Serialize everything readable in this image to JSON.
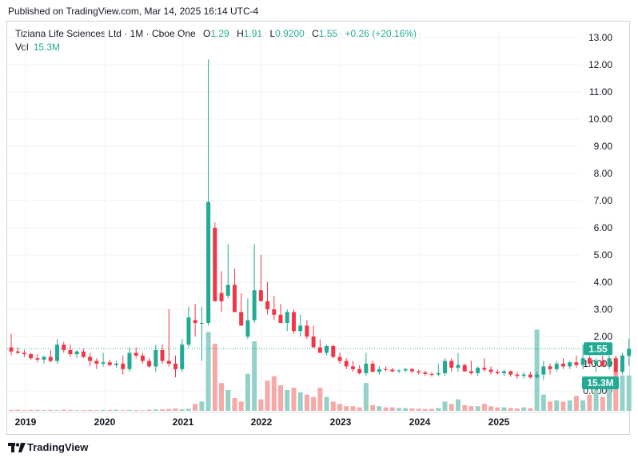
{
  "header": {
    "published": "Published on TradingView.com, Mar 14, 2025 16:14 UTC-4"
  },
  "legend": {
    "symbol": "Tiziana Life Sciences Ltd · 1M · Cboe One",
    "open_label": "O",
    "open": "1.29",
    "high_label": "H",
    "high": "1.91",
    "low_label": "L",
    "low": "0.9200",
    "close_label": "C",
    "close": "1.55",
    "change": "+0.26 (+20.16%)",
    "vol_label": "Vol",
    "vol": "15.3M"
  },
  "footer": {
    "brand": "TradingView",
    "logo_icon": "tradingview-logo-icon"
  },
  "colors": {
    "up": "#22ab94",
    "down": "#f23645",
    "up_vol": "#94d1c8",
    "down_vol": "#f7a9a7",
    "grid": "#f0f3fa",
    "price_line": "#22ab94"
  },
  "chart_data": {
    "type": "candlestick",
    "symbol": "Tiziana Life Sciences Ltd",
    "interval": "1M",
    "ylim": [
      0,
      13.0
    ],
    "y_ticks": [
      "13.00",
      "12.00",
      "11.00",
      "10.00",
      "9.00",
      "8.00",
      "7.00",
      "6.00",
      "5.00",
      "4.00",
      "3.00",
      "2.00",
      "1.0000",
      "0.0000"
    ],
    "x_ticks": [
      "2019",
      "2020",
      "2021",
      "2022",
      "2023",
      "2024",
      "2025"
    ],
    "last_price_label": "1.55",
    "last_volume_label": "15.3M",
    "ohlc": [
      [
        1.6,
        2.1,
        1.3,
        1.45
      ],
      [
        1.45,
        1.6,
        1.35,
        1.4
      ],
      [
        1.4,
        1.5,
        1.25,
        1.35
      ],
      [
        1.35,
        1.4,
        1.15,
        1.2
      ],
      [
        1.2,
        1.35,
        1.05,
        1.15
      ],
      [
        1.15,
        1.3,
        1.0,
        1.25
      ],
      [
        1.25,
        1.5,
        1.05,
        1.1
      ],
      [
        1.1,
        1.9,
        1.0,
        1.7
      ],
      [
        1.7,
        1.8,
        1.4,
        1.5
      ],
      [
        1.5,
        1.7,
        1.25,
        1.35
      ],
      [
        1.35,
        1.5,
        1.2,
        1.45
      ],
      [
        1.45,
        1.55,
        1.2,
        1.25
      ],
      [
        1.25,
        1.4,
        0.9,
        1.1
      ],
      [
        1.1,
        1.2,
        0.8,
        1.0
      ],
      [
        1.0,
        1.4,
        0.9,
        1.05
      ],
      [
        1.05,
        1.15,
        0.9,
        0.95
      ],
      [
        0.95,
        1.1,
        0.85,
        1.0
      ],
      [
        1.0,
        1.3,
        0.6,
        0.8
      ],
      [
        0.8,
        1.6,
        0.7,
        1.4
      ],
      [
        1.4,
        1.6,
        1.2,
        1.3
      ],
      [
        1.3,
        1.4,
        1.0,
        1.1
      ],
      [
        1.1,
        1.2,
        0.85,
        0.9
      ],
      [
        0.9,
        1.7,
        0.7,
        1.5
      ],
      [
        1.5,
        1.7,
        1.0,
        1.1
      ],
      [
        1.1,
        3.0,
        0.9,
        1.0
      ],
      [
        1.0,
        1.3,
        0.5,
        0.8
      ],
      [
        0.8,
        1.9,
        0.7,
        1.7
      ],
      [
        1.7,
        3.1,
        1.6,
        2.7
      ],
      [
        2.6,
        3.2,
        2.0,
        2.5
      ],
      [
        2.5,
        3.1,
        1.1,
        2.5
      ],
      [
        2.5,
        12.2,
        2.4,
        6.95
      ],
      [
        6.0,
        6.2,
        3.3,
        3.3
      ],
      [
        3.6,
        4.4,
        2.9,
        3.3
      ],
      [
        3.5,
        5.4,
        3.4,
        3.9
      ],
      [
        3.9,
        4.5,
        3.0,
        2.9
      ],
      [
        2.9,
        3.6,
        2.4,
        2.4
      ],
      [
        2.0,
        3.4,
        1.9,
        2.6
      ],
      [
        2.6,
        5.4,
        2.5,
        3.7
      ],
      [
        3.7,
        5.0,
        3.3,
        3.3
      ],
      [
        3.3,
        4.0,
        2.8,
        3.0
      ],
      [
        3.0,
        3.5,
        2.6,
        2.8
      ],
      [
        2.8,
        3.2,
        2.5,
        2.5
      ],
      [
        2.5,
        3.0,
        2.2,
        2.9
      ],
      [
        2.9,
        3.0,
        2.1,
        2.2
      ],
      [
        2.2,
        2.8,
        2.0,
        2.4
      ],
      [
        2.4,
        2.6,
        1.9,
        2.0
      ],
      [
        2.0,
        2.4,
        1.6,
        1.6
      ],
      [
        1.6,
        1.9,
        1.4,
        1.4
      ],
      [
        1.4,
        1.7,
        1.3,
        1.65
      ],
      [
        1.65,
        1.7,
        1.2,
        1.25
      ],
      [
        1.25,
        1.4,
        1.0,
        1.1
      ],
      [
        1.1,
        1.2,
        0.8,
        0.9
      ],
      [
        0.9,
        1.1,
        0.7,
        0.8
      ],
      [
        0.8,
        0.95,
        0.6,
        0.65
      ],
      [
        0.65,
        1.4,
        0.55,
        1.0
      ],
      [
        1.0,
        1.1,
        0.7,
        0.7
      ],
      [
        0.7,
        0.9,
        0.6,
        0.8
      ],
      [
        0.8,
        0.9,
        0.7,
        0.78
      ],
      [
        0.78,
        0.85,
        0.68,
        0.72
      ],
      [
        0.72,
        0.8,
        0.65,
        0.75
      ],
      [
        0.75,
        0.85,
        0.68,
        0.8
      ],
      [
        0.8,
        0.85,
        0.65,
        0.72
      ],
      [
        0.72,
        0.78,
        0.6,
        0.68
      ],
      [
        0.68,
        0.75,
        0.55,
        0.62
      ],
      [
        0.62,
        0.7,
        0.52,
        0.6
      ],
      [
        0.6,
        1.0,
        0.55,
        0.65
      ],
      [
        0.65,
        1.2,
        0.55,
        1.1
      ],
      [
        1.1,
        1.2,
        0.7,
        0.85
      ],
      [
        0.85,
        1.4,
        0.7,
        0.95
      ],
      [
        0.95,
        1.0,
        0.7,
        0.72
      ],
      [
        0.72,
        1.1,
        0.6,
        0.65
      ],
      [
        0.65,
        0.9,
        0.55,
        0.85
      ],
      [
        0.85,
        1.2,
        0.7,
        0.78
      ],
      [
        0.78,
        0.9,
        0.6,
        0.7
      ],
      [
        0.7,
        0.8,
        0.6,
        0.65
      ],
      [
        0.65,
        0.78,
        0.55,
        0.72
      ],
      [
        0.72,
        0.75,
        0.52,
        0.6
      ],
      [
        0.6,
        0.7,
        0.45,
        0.55
      ],
      [
        0.55,
        0.7,
        0.45,
        0.6
      ],
      [
        0.6,
        0.7,
        0.45,
        0.5
      ],
      [
        0.5,
        0.7,
        0.45,
        0.6
      ],
      [
        0.6,
        1.1,
        0.4,
        0.9
      ],
      [
        0.9,
        1.0,
        0.6,
        0.8
      ],
      [
        0.8,
        1.1,
        0.7,
        1.0
      ],
      [
        1.0,
        1.2,
        0.8,
        0.9
      ],
      [
        0.9,
        1.1,
        0.8,
        1.05
      ],
      [
        1.05,
        1.3,
        0.85,
        0.95
      ],
      [
        0.95,
        1.7,
        0.8,
        1.2
      ],
      [
        1.2,
        1.3,
        0.9,
        1.0
      ],
      [
        1.0,
        1.2,
        0.7,
        1.1
      ],
      [
        1.1,
        1.3,
        0.9,
        0.9
      ],
      [
        0.9,
        1.3,
        0.8,
        1.2
      ],
      [
        1.2,
        1.3,
        0.6,
        0.7
      ],
      [
        0.7,
        1.4,
        0.6,
        1.3
      ],
      [
        1.29,
        1.91,
        0.92,
        1.55
      ]
    ],
    "volume_millions": [
      0.4,
      0.5,
      0.3,
      0.4,
      0.4,
      0.3,
      0.4,
      0.3,
      0.5,
      0.4,
      0.3,
      0.3,
      0.4,
      0.3,
      0.4,
      0.4,
      0.5,
      0.3,
      0.4,
      0.3,
      0.3,
      0.5,
      0.6,
      0.7,
      0.8,
      1.0,
      0.7,
      0.9,
      3.0,
      4.0,
      34.0,
      29.0,
      12.0,
      9.0,
      5.5,
      4.0,
      16.0,
      30.0,
      5.0,
      13.0,
      15.0,
      11.0,
      9.0,
      10.0,
      8.0,
      7.0,
      6.0,
      10.0,
      6.0,
      4.0,
      3.0,
      2.0,
      2.0,
      1.5,
      12.0,
      2.5,
      2.0,
      1.5,
      1.5,
      1.2,
      1.2,
      1.0,
      0.9,
      0.8,
      0.9,
      1.2,
      4.0,
      3.0,
      5.0,
      2.5,
      2.0,
      2.0,
      3.0,
      2.0,
      1.5,
      1.5,
      1.2,
      1.0,
      1.5,
      1.2,
      2.0,
      7.0,
      4.0,
      4.5,
      4.0,
      4.5,
      6.5,
      4.5,
      7.0,
      9.0,
      6.0,
      12.0,
      17.0,
      15.3,
      15.3
    ],
    "volume_special": {
      "index": 80,
      "value": 35.0
    }
  }
}
